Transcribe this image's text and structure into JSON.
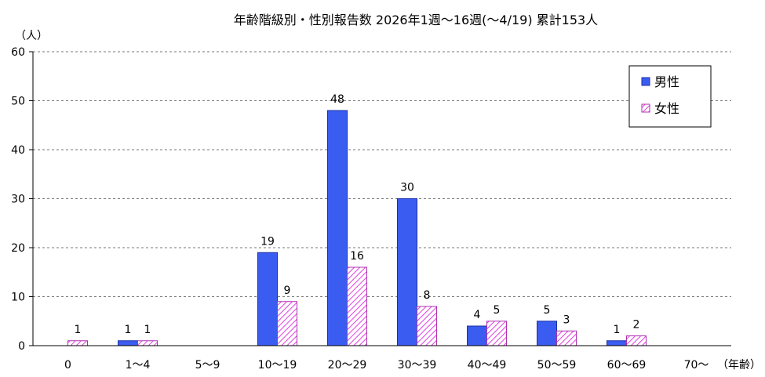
{
  "chart_data": {
    "type": "bar",
    "title": "年齢階級別・性別報告数 2026年1週～16週(～4/19) 累計153人",
    "ylabel": "（人）",
    "xlabel": "（年齢）",
    "ylim": [
      0,
      60
    ],
    "yticks": [
      0,
      10,
      20,
      30,
      40,
      50,
      60
    ],
    "grid": true,
    "legend_position": "top-right",
    "categories": [
      "0",
      "1～4",
      "5～9",
      "10～19",
      "20～29",
      "30～39",
      "40～49",
      "50～59",
      "60～69",
      "70～"
    ],
    "series": [
      {
        "name": "男性",
        "color": "#3b5cf0",
        "pattern": "solid",
        "values": [
          0,
          1,
          0,
          19,
          48,
          30,
          4,
          5,
          1,
          0
        ],
        "labels": [
          "",
          "1",
          "",
          "19",
          "48",
          "30",
          "4",
          "5",
          "1",
          ""
        ]
      },
      {
        "name": "女性",
        "color": "#e040e0",
        "pattern": "hatch",
        "values": [
          1,
          1,
          0,
          9,
          16,
          8,
          5,
          3,
          2,
          0
        ],
        "labels": [
          "1",
          "1",
          "",
          "9",
          "16",
          "8",
          "5",
          "3",
          "2",
          ""
        ]
      }
    ]
  }
}
